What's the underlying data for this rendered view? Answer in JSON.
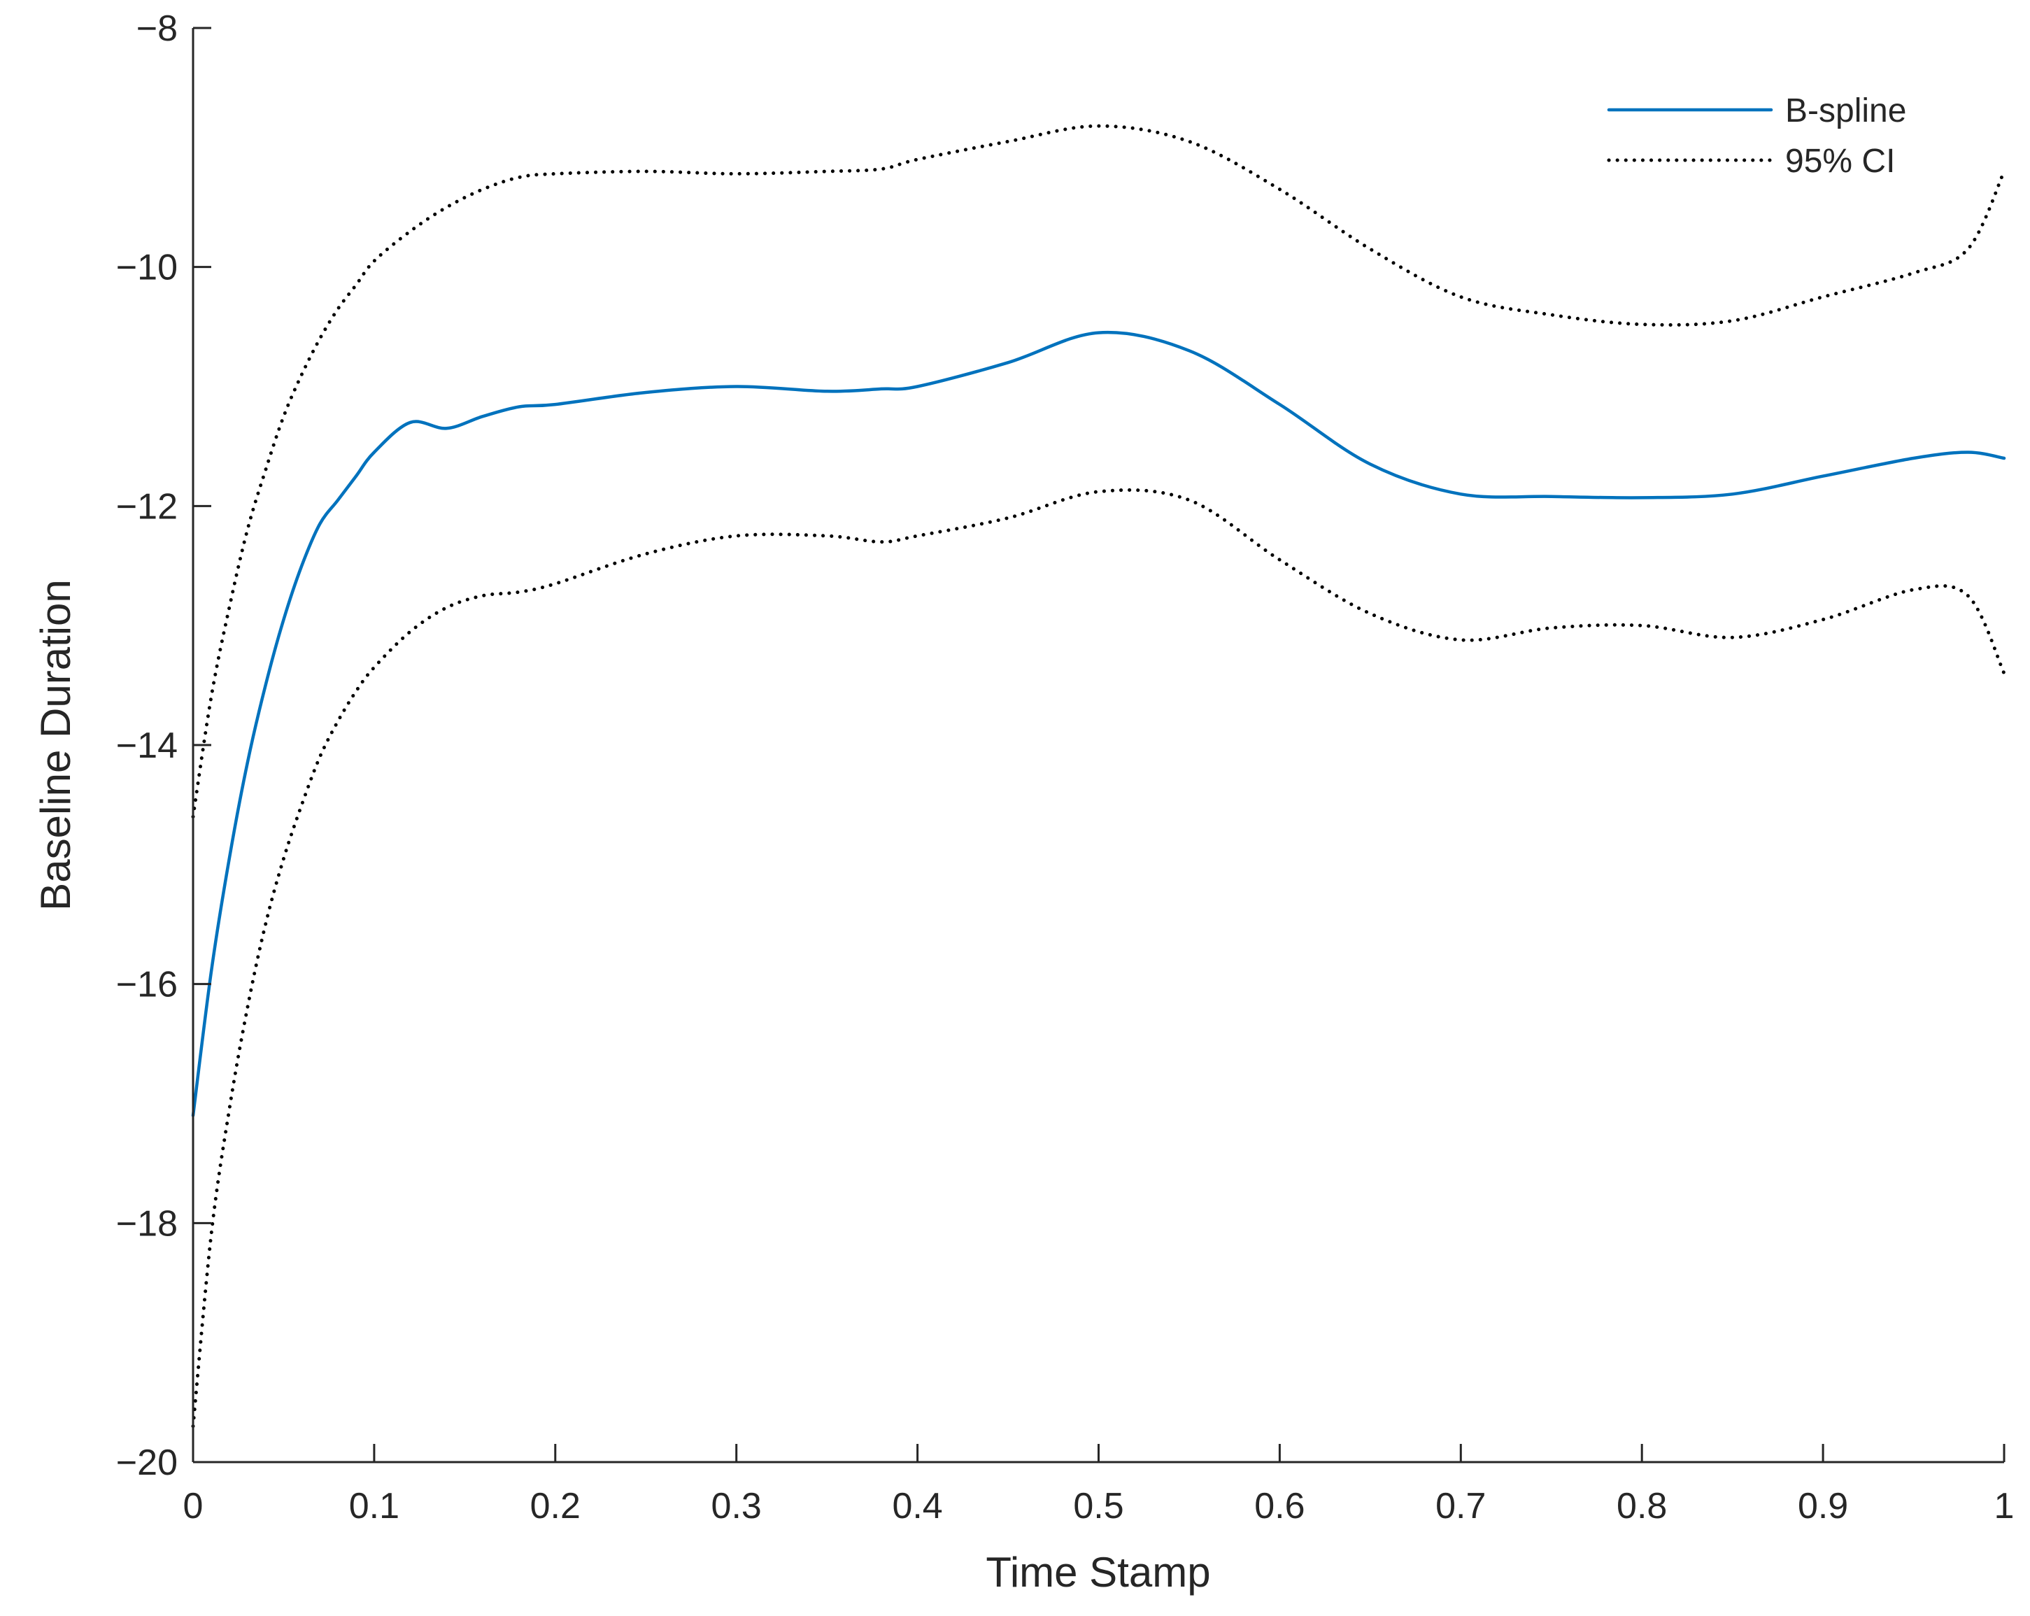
{
  "chart_data": {
    "type": "line",
    "title": "",
    "xlabel": "Time Stamp",
    "ylabel": "Baseline Duration",
    "xlim": [
      0,
      1
    ],
    "ylim": [
      -20,
      -8
    ],
    "xticks": [
      0,
      0.1,
      0.2,
      0.3,
      0.4,
      0.5,
      0.6,
      0.7,
      0.8,
      0.9,
      1
    ],
    "xtick_labels": [
      "0",
      "0.1",
      "0.2",
      "0.3",
      "0.4",
      "0.5",
      "0.6",
      "0.7",
      "0.8",
      "0.9",
      "1"
    ],
    "yticks": [
      -20,
      -18,
      -16,
      -14,
      -12,
      -10,
      -8
    ],
    "ytick_labels": [
      "−20",
      "−18",
      "−16",
      "−14",
      "−12",
      "−10",
      "−8"
    ],
    "grid": false,
    "legend_position": "top-right",
    "series": [
      {
        "name": "B-spline",
        "style": "solid",
        "color": "#0072BD",
        "x": [
          0,
          0.01,
          0.02,
          0.03,
          0.04,
          0.05,
          0.06,
          0.07,
          0.08,
          0.09,
          0.1,
          0.12,
          0.14,
          0.16,
          0.18,
          0.2,
          0.25,
          0.3,
          0.35,
          0.38,
          0.4,
          0.45,
          0.5,
          0.55,
          0.6,
          0.65,
          0.7,
          0.75,
          0.8,
          0.85,
          0.9,
          0.95,
          0.98,
          1.0
        ],
        "y": [
          -17.1,
          -15.9,
          -14.95,
          -14.15,
          -13.5,
          -12.95,
          -12.5,
          -12.15,
          -11.95,
          -11.75,
          -11.55,
          -11.3,
          -11.35,
          -11.25,
          -11.17,
          -11.15,
          -11.05,
          -11.0,
          -11.04,
          -11.02,
          -11.0,
          -10.8,
          -10.55,
          -10.7,
          -11.15,
          -11.65,
          -11.9,
          -11.92,
          -11.93,
          -11.9,
          -11.75,
          -11.6,
          -11.55,
          -11.6
        ]
      },
      {
        "name": "95% CI",
        "style": "dotted",
        "color": "#000000",
        "x": [
          0,
          0.01,
          0.02,
          0.03,
          0.04,
          0.05,
          0.06,
          0.07,
          0.08,
          0.09,
          0.1,
          0.12,
          0.14,
          0.16,
          0.18,
          0.2,
          0.25,
          0.3,
          0.35,
          0.38,
          0.4,
          0.45,
          0.5,
          0.55,
          0.6,
          0.65,
          0.7,
          0.75,
          0.8,
          0.85,
          0.9,
          0.95,
          0.98,
          1.0
        ],
        "y": [
          -14.6,
          -13.6,
          -12.85,
          -12.2,
          -11.7,
          -11.25,
          -10.9,
          -10.6,
          -10.35,
          -10.15,
          -9.95,
          -9.7,
          -9.5,
          -9.35,
          -9.25,
          -9.22,
          -9.2,
          -9.22,
          -9.2,
          -9.18,
          -9.1,
          -8.95,
          -8.82,
          -8.95,
          -9.35,
          -9.85,
          -10.25,
          -10.4,
          -10.48,
          -10.45,
          -10.25,
          -10.05,
          -9.85,
          -9.2
        ]
      },
      {
        "name": "",
        "style": "dotted",
        "color": "#000000",
        "x": [
          0,
          0.01,
          0.02,
          0.03,
          0.04,
          0.05,
          0.06,
          0.07,
          0.08,
          0.09,
          0.1,
          0.12,
          0.14,
          0.16,
          0.18,
          0.2,
          0.25,
          0.3,
          0.35,
          0.38,
          0.4,
          0.45,
          0.5,
          0.55,
          0.6,
          0.65,
          0.7,
          0.75,
          0.8,
          0.85,
          0.9,
          0.95,
          0.98,
          1.0
        ],
        "y": [
          -19.7,
          -18.1,
          -17.05,
          -16.2,
          -15.5,
          -14.95,
          -14.5,
          -14.1,
          -13.8,
          -13.55,
          -13.35,
          -13.05,
          -12.85,
          -12.75,
          -12.72,
          -12.65,
          -12.4,
          -12.25,
          -12.25,
          -12.3,
          -12.25,
          -12.1,
          -11.88,
          -11.95,
          -12.45,
          -12.9,
          -13.12,
          -13.02,
          -13.0,
          -13.1,
          -12.95,
          -12.7,
          -12.75,
          -13.4
        ]
      }
    ]
  }
}
